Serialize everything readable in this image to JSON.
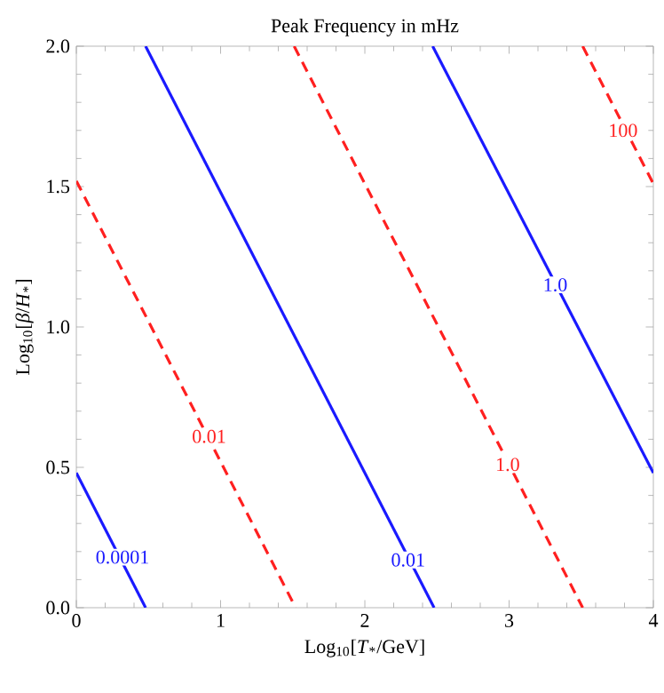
{
  "chart_data": {
    "type": "line",
    "title": "Peak Frequency in mHz",
    "xlabel": "Log$_{10}$[*T*$_{*}$/GeV]",
    "ylabel": "Log$_{10}$[*β*/*H*$_{*}$]",
    "xlim": [
      0,
      4
    ],
    "ylim": [
      0,
      2
    ],
    "xticks": [
      0,
      1,
      2,
      3,
      4
    ],
    "yticks": [
      {
        "value": 0,
        "label": "0.0"
      },
      {
        "value": 0.5,
        "label": "0.5"
      },
      {
        "value": 1,
        "label": "1.0"
      },
      {
        "value": 1.5,
        "label": "1.5"
      },
      {
        "value": 2,
        "label": "2.0"
      }
    ],
    "series": [
      {
        "color": "#1a1aff",
        "line_style": "solid",
        "x": [
          0,
          0.48
        ],
        "values": [
          0.48,
          0
        ]
      },
      {
        "color": "#ff2020",
        "line_style": "dashed",
        "x": [
          0,
          1.52
        ],
        "values": [
          1.52,
          0
        ]
      },
      {
        "color": "#1a1aff",
        "line_style": "solid",
        "x": [
          0.48,
          2.48
        ],
        "values": [
          2,
          0
        ]
      },
      {
        "color": "#ff2020",
        "line_style": "dashed",
        "x": [
          1.51,
          3.51
        ],
        "values": [
          2,
          0
        ]
      },
      {
        "color": "#1a1aff",
        "line_style": "solid",
        "x": [
          2.47,
          4
        ],
        "values": [
          2,
          0.48
        ]
      },
      {
        "color": "#ff2020",
        "line_style": "dashed",
        "x": [
          3.51,
          4
        ],
        "values": [
          2,
          1.51
        ]
      }
    ],
    "annotations": [
      {
        "text": "0.0001",
        "x": 0.32,
        "y": 0.18
      },
      {
        "text": "0.01",
        "x": 0.92,
        "y": 0.61
      },
      {
        "text": "0.01",
        "x": 2.3,
        "y": 0.17
      },
      {
        "text": "1.0",
        "x": 2.99,
        "y": 0.51
      },
      {
        "text": "1.0",
        "x": 3.32,
        "y": 1.15
      },
      {
        "text": "100",
        "x": 3.79,
        "y": 1.7
      }
    ]
  }
}
